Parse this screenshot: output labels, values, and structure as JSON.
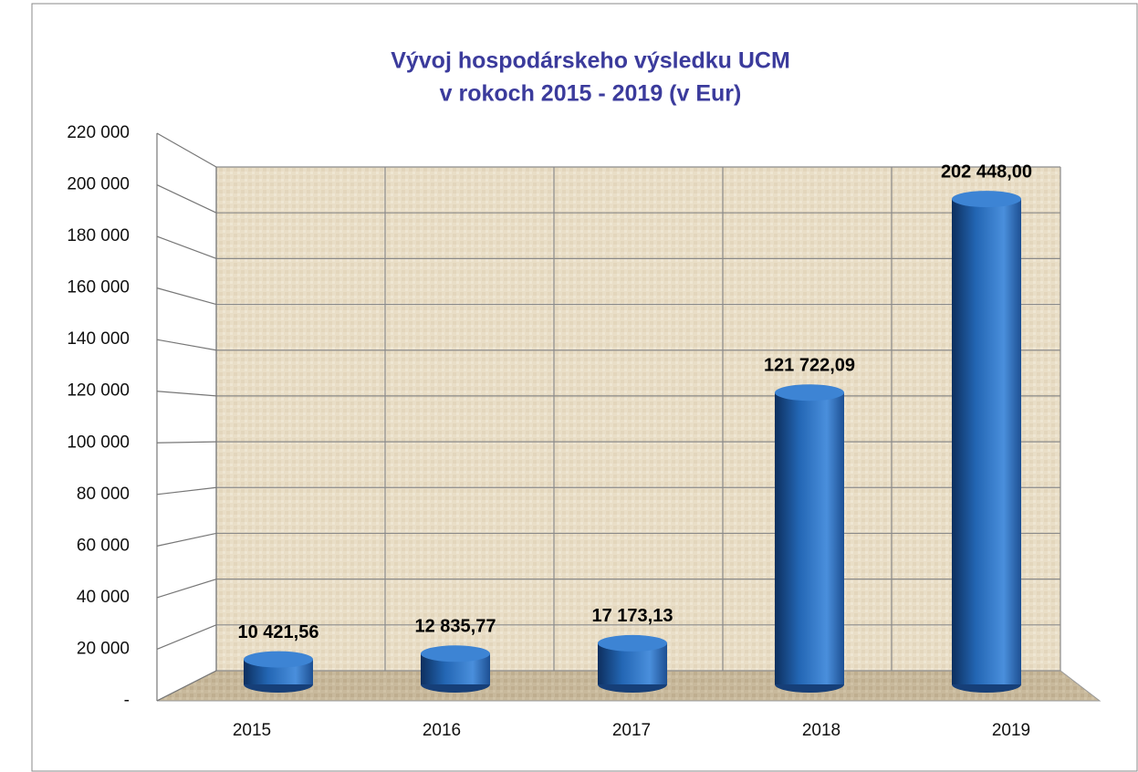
{
  "chart_data": {
    "type": "bar3d",
    "title": "Vývoj hospodárskeho výsledku UCM",
    "subtitle": "v rokoch 2015 - 2019 (v Eur)",
    "categories": [
      "2015",
      "2016",
      "2017",
      "2018",
      "2019"
    ],
    "values": [
      10421.56,
      12835.77,
      17173.13,
      121722.09,
      202448.0
    ],
    "value_labels": [
      "10 421,56",
      "12 835,77",
      "17 173,13",
      "121 722,09",
      "202 448,00"
    ],
    "color": "#2e6fc0",
    "ylim": [
      0,
      220000
    ],
    "yticks": [
      {
        "value": 0,
        "label": "-"
      },
      {
        "value": 20000,
        "label": "20 000"
      },
      {
        "value": 40000,
        "label": "40 000"
      },
      {
        "value": 60000,
        "label": "60 000"
      },
      {
        "value": 80000,
        "label": "80 000"
      },
      {
        "value": 100000,
        "label": "100 000"
      },
      {
        "value": 120000,
        "label": "120 000"
      },
      {
        "value": 140000,
        "label": "140 000"
      },
      {
        "value": 160000,
        "label": "160 000"
      },
      {
        "value": 180000,
        "label": "180 000"
      },
      {
        "value": 200000,
        "label": "200 000"
      },
      {
        "value": 220000,
        "label": "220 000"
      }
    ],
    "grid": true
  }
}
